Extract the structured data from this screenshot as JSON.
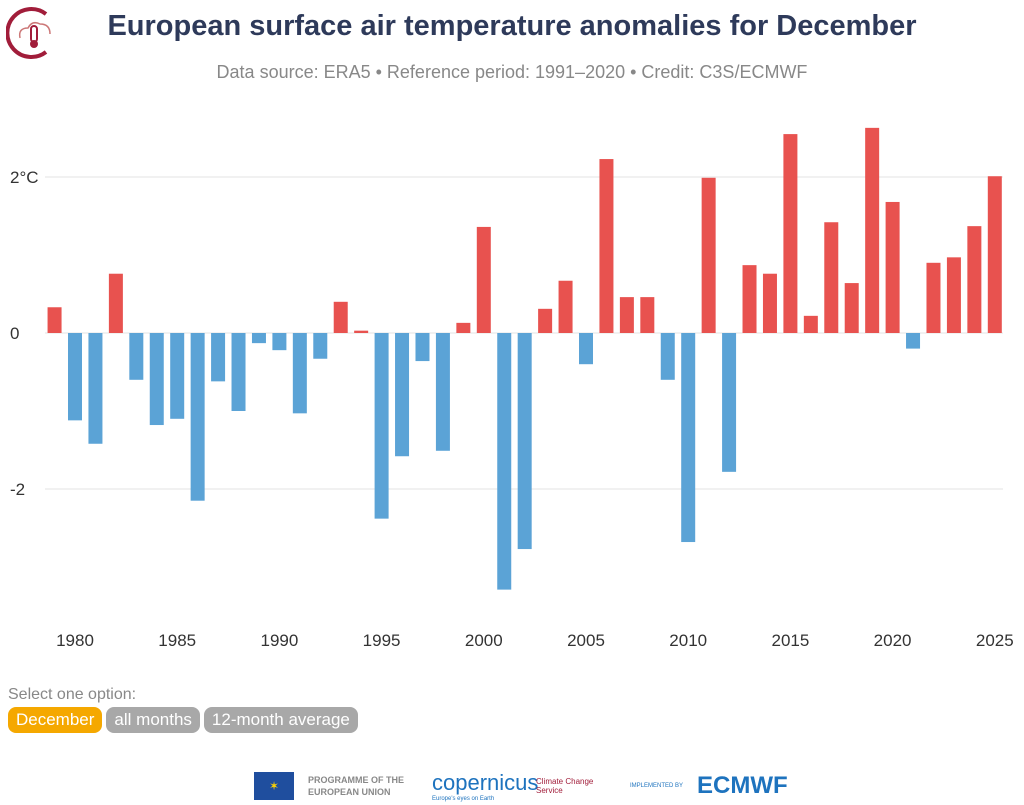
{
  "chart_data": {
    "type": "bar",
    "title": "European surface air temperature anomalies for December",
    "subtitle": "Data source: ERA5 • Reference period: 1991–2020 • Credit: C3S/ECMWF",
    "xlabel": "",
    "ylabel": "",
    "ylim": [
      -3.6,
      2.8
    ],
    "yticks": [
      {
        "value": 2,
        "label": "2°C"
      },
      {
        "value": 0,
        "label": "0"
      },
      {
        "value": -2,
        "label": "-2"
      }
    ],
    "xticks": [
      1980,
      1985,
      1990,
      1995,
      2000,
      2005,
      2010,
      2015,
      2020,
      2025
    ],
    "grid": true,
    "colors": {
      "positive": "#e8524f",
      "negative": "#5ba3d6"
    },
    "x": [
      1979,
      1980,
      1981,
      1982,
      1983,
      1984,
      1985,
      1986,
      1987,
      1988,
      1989,
      1990,
      1991,
      1992,
      1993,
      1994,
      1995,
      1996,
      1997,
      1998,
      1999,
      2000,
      2001,
      2002,
      2003,
      2004,
      2005,
      2006,
      2007,
      2008,
      2009,
      2010,
      2011,
      2012,
      2013,
      2014,
      2015,
      2016,
      2017,
      2018,
      2019,
      2020,
      2021,
      2022,
      2023,
      2024,
      2025
    ],
    "values": [
      0.33,
      -1.12,
      -1.42,
      0.76,
      -0.6,
      -1.18,
      -1.1,
      -2.15,
      -0.62,
      -1.0,
      -0.13,
      -0.22,
      -1.03,
      -0.33,
      0.4,
      0.03,
      -2.38,
      -1.58,
      -0.36,
      -1.51,
      0.13,
      1.36,
      -3.29,
      -2.77,
      0.31,
      0.67,
      -0.4,
      2.23,
      0.46,
      0.46,
      -0.6,
      -2.68,
      1.99,
      -1.78,
      0.87,
      0.76,
      2.55,
      0.22,
      1.42,
      0.64,
      2.63,
      1.68,
      -0.2,
      0.9,
      0.97,
      1.37,
      2.01
    ]
  },
  "controls": {
    "label": "Select one option:",
    "options": [
      "December",
      "all months",
      "12-month average"
    ],
    "selected": 0
  },
  "footer": {
    "eu": "PROGRAMME OF THE EUROPEAN UNION",
    "copernicus": "opernicus",
    "copernicus_tagline": "Europe's eyes on Earth",
    "c3s": "Climate Change Service",
    "implemented": "IMPLEMENTED BY",
    "ecmwf": "ECMWF"
  }
}
